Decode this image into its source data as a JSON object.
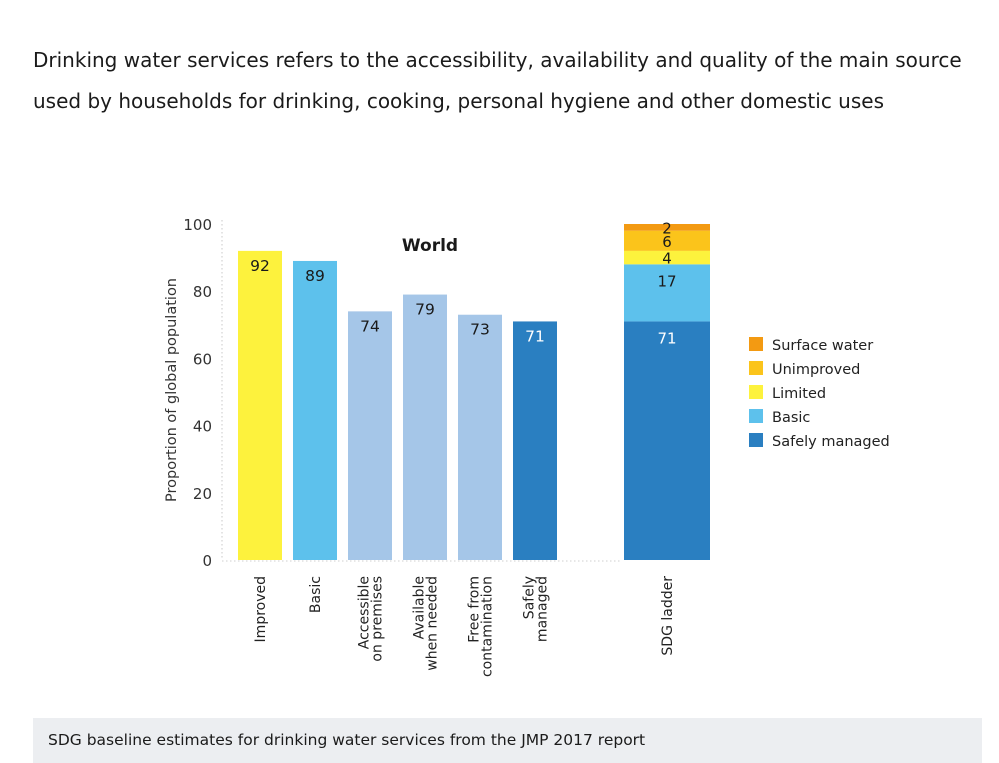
{
  "intro_text": "Drinking water services refers to the accessibility, availability and quality of the main source used by households for drinking, cooking, personal hygiene and other domestic uses",
  "caption": "SDG baseline estimates for drinking water services from the JMP 2017 report",
  "chart_data": {
    "type": "bar",
    "title": "World",
    "xlabel": "",
    "ylabel": "Proportion of global population",
    "ylim": [
      0,
      100
    ],
    "yticks": [
      0,
      20,
      40,
      60,
      80,
      100
    ],
    "grid": false,
    "categories": [
      "Improved",
      "Basic",
      "Accessible on premises",
      "Available when needed",
      "Free from contamination",
      "Safely managed"
    ],
    "category_lines": [
      [
        "Improved"
      ],
      [
        "Basic"
      ],
      [
        "Accessible",
        "on premises"
      ],
      [
        "Available",
        "when needed"
      ],
      [
        "Free from",
        "contamination"
      ],
      [
        "Safely",
        "managed"
      ]
    ],
    "values": [
      92,
      89,
      74,
      79,
      73,
      71
    ],
    "bar_colors": [
      "#fdf23d",
      "#5dc1ec",
      "#a5c6e8",
      "#a5c6e8",
      "#a5c6e8",
      "#2a7fc1"
    ],
    "label_colors": [
      "#1a1a1a",
      "#1a1a1a",
      "#1a1a1a",
      "#1a1a1a",
      "#1a1a1a",
      "#ffffff"
    ],
    "stacked": {
      "category": "SDG ladder",
      "series": [
        {
          "name": "Safely managed",
          "value": 71,
          "color": "#2a7fc1",
          "label_color": "#ffffff"
        },
        {
          "name": "Basic",
          "value": 17,
          "color": "#5dc1ec",
          "label_color": "#1a1a1a"
        },
        {
          "name": "Limited",
          "value": 4,
          "color": "#fdf23d",
          "label_color": "#1a1a1a"
        },
        {
          "name": "Unimproved",
          "value": 6,
          "color": "#fbc41b",
          "label_color": "#1a1a1a"
        },
        {
          "name": "Surface water",
          "value": 2,
          "color": "#f39a12",
          "label_color": "#1a1a1a"
        }
      ]
    },
    "legend": {
      "position": "right",
      "entries": [
        {
          "label": "Surface water",
          "color": "#f39a12"
        },
        {
          "label": "Unimproved",
          "color": "#fbc41b"
        },
        {
          "label": "Limited",
          "color": "#fdf23d"
        },
        {
          "label": "Basic",
          "color": "#5dc1ec"
        },
        {
          "label": "Safely managed",
          "color": "#2a7fc1"
        }
      ]
    }
  }
}
